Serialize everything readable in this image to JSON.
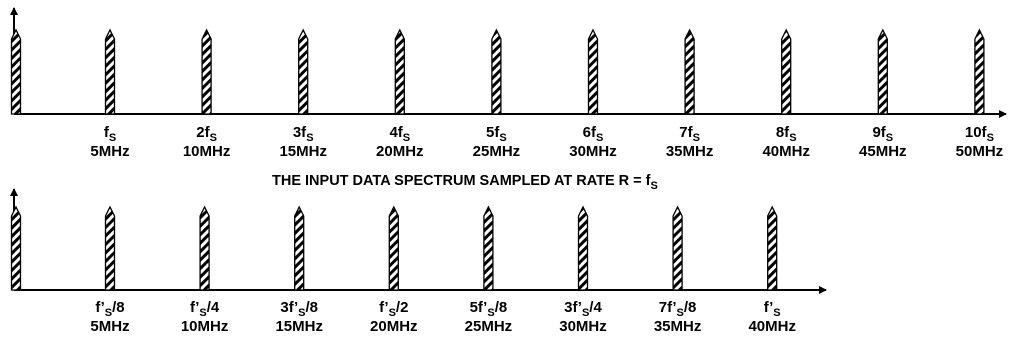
{
  "top_spectrum": {
    "caption": "THE INPUT DATA SPECTRUM SAMPLED AT RATE R = f",
    "caption_sub": "S",
    "labels": [
      {
        "main": "f",
        "sub": "S",
        "tail": "",
        "freq": "5MHz"
      },
      {
        "main": "2f",
        "sub": "S",
        "tail": "",
        "freq": "10MHz"
      },
      {
        "main": "3f",
        "sub": "S",
        "tail": "",
        "freq": "15MHz"
      },
      {
        "main": "4f",
        "sub": "S",
        "tail": "",
        "freq": "20MHz"
      },
      {
        "main": "5f",
        "sub": "S",
        "tail": "",
        "freq": "25MHz"
      },
      {
        "main": "6f",
        "sub": "S",
        "tail": "",
        "freq": "30MHz"
      },
      {
        "main": "7f",
        "sub": "S",
        "tail": "",
        "freq": "35MHz"
      },
      {
        "main": "8f",
        "sub": "S",
        "tail": "",
        "freq": "40MHz"
      },
      {
        "main": "9f",
        "sub": "S",
        "tail": "",
        "freq": "45MHz"
      },
      {
        "main": "10f",
        "sub": "S",
        "tail": "",
        "freq": "50MHz"
      }
    ]
  },
  "bottom_spectrum": {
    "labels": [
      {
        "main": "f’",
        "sub": "S",
        "tail": "/8",
        "freq": "5MHz"
      },
      {
        "main": "f’",
        "sub": "S",
        "tail": "/4",
        "freq": "10MHz"
      },
      {
        "main": "3f’",
        "sub": "S",
        "tail": "/8",
        "freq": "15MHz"
      },
      {
        "main": "f’",
        "sub": "S",
        "tail": "/2",
        "freq": "20MHz"
      },
      {
        "main": "5f’",
        "sub": "S",
        "tail": "/8",
        "freq": "25MHz"
      },
      {
        "main": "3f’",
        "sub": "S",
        "tail": "/4",
        "freq": "30MHz"
      },
      {
        "main": "7f’",
        "sub": "S",
        "tail": "/8",
        "freq": "35MHz"
      },
      {
        "main": "f’",
        "sub": "S",
        "tail": "",
        "freq": "40MHz"
      }
    ]
  },
  "colors": {
    "ink": "#000000",
    "background": "#ffffff"
  }
}
